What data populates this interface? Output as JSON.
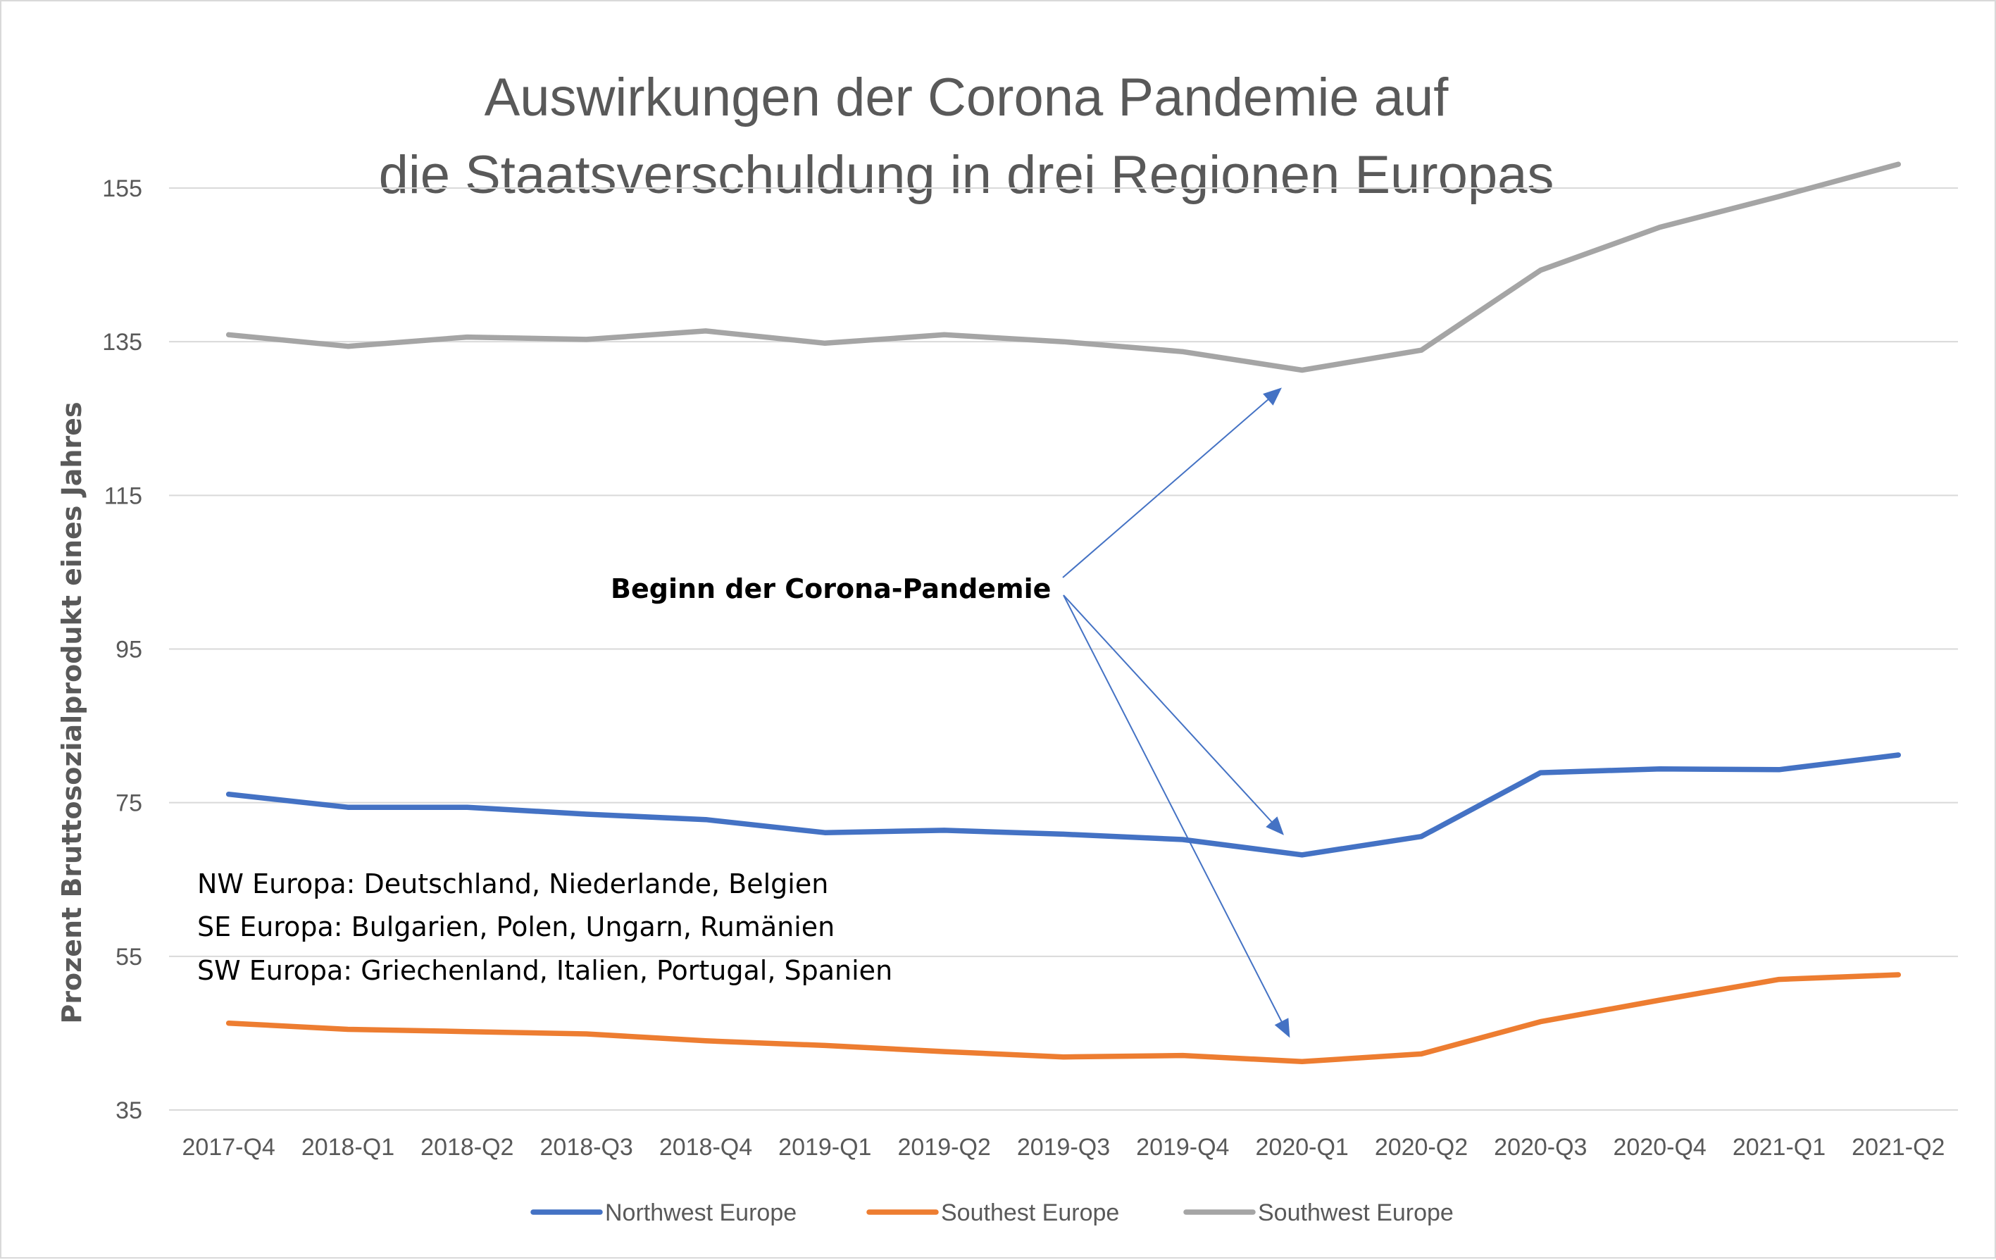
{
  "chart_data": {
    "type": "line",
    "title_lines": [
      "Auswirkungen der Corona Pandemie auf",
      "die Staatsverschuldung in drei Regionen Europas"
    ],
    "ylabel": "Prozent Bruttosozialprodukt eines Jahres",
    "xlabel": "",
    "ylim": [
      35,
      158
    ],
    "yticks": [
      35,
      55,
      75,
      95,
      115,
      135,
      155
    ],
    "grid": true,
    "legend_position": "bottom",
    "categories": [
      "2017-Q4",
      "2018-Q1",
      "2018-Q2",
      "2018-Q3",
      "2018-Q4",
      "2019-Q1",
      "2019-Q2",
      "2019-Q3",
      "2019-Q4",
      "2020-Q1",
      "2020-Q2",
      "2020-Q3",
      "2020-Q4",
      "2021-Q1",
      "2021-Q2"
    ],
    "series": [
      {
        "name": "Northwest Europe",
        "color": "#4472C4",
        "values": [
          76.1,
          74.4,
          74.4,
          73.5,
          72.8,
          71.1,
          71.4,
          70.9,
          70.2,
          68.2,
          70.6,
          78.9,
          79.4,
          79.3,
          81.2
        ]
      },
      {
        "name": "Southest Europe",
        "color": "#ED7D31",
        "values": [
          46.3,
          45.5,
          45.2,
          44.9,
          44.0,
          43.4,
          42.6,
          41.9,
          42.1,
          41.3,
          42.3,
          46.5,
          49.3,
          52.0,
          52.6
        ]
      },
      {
        "name": "Southwest Europe",
        "color": "#A5A5A5",
        "values": [
          135.9,
          134.4,
          135.6,
          135.3,
          136.4,
          134.8,
          135.9,
          135.0,
          133.7,
          131.3,
          133.9,
          144.3,
          149.9,
          153.9,
          158.1
        ]
      }
    ],
    "annotation": {
      "text": "Beginn der Corona-Pandemie",
      "arrow_targets": [
        {
          "series": "Southwest Europe",
          "category": "2020-Q1"
        },
        {
          "series": "Northwest Europe",
          "category": "2020-Q1"
        },
        {
          "series": "Southest Europe",
          "category": "2020-Q1"
        }
      ]
    },
    "notes": [
      "NW Europa: Deutschland, Niederlande, Belgien",
      "SE Europa: Bulgarien, Polen, Ungarn, Rumänien",
      "SW Europa: Griechenland, Italien, Portugal, Spanien"
    ]
  }
}
